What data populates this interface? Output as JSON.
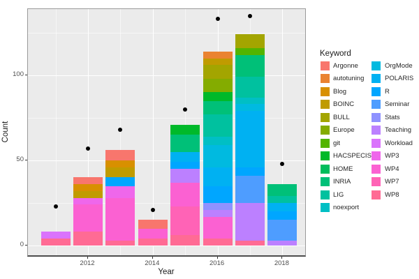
{
  "chart_data": {
    "type": "bar",
    "stacked": true,
    "title": "",
    "xlabel": "Year",
    "ylabel": "Count",
    "legend_title": "Keyword",
    "legend_position": "right",
    "grid": true,
    "x_ticks": [
      2012,
      2014,
      2016,
      2018
    ],
    "y_ticks": [
      0,
      50,
      100
    ],
    "ylim": [
      0,
      139
    ],
    "keywords": [
      {
        "label": "Argonne",
        "color": "#F8766D"
      },
      {
        "label": "autotuning",
        "color": "#EA8331"
      },
      {
        "label": "Blog",
        "color": "#D89000"
      },
      {
        "label": "BOINC",
        "color": "#C09B00"
      },
      {
        "label": "BULL",
        "color": "#A3A500"
      },
      {
        "label": "Europe",
        "color": "#84AC00"
      },
      {
        "label": "git",
        "color": "#52B400"
      },
      {
        "label": "HACSPECIS",
        "color": "#00B92A"
      },
      {
        "label": "HOME",
        "color": "#00BD5C"
      },
      {
        "label": "INRIA",
        "color": "#00C078"
      },
      {
        "label": "LIG",
        "color": "#00C19F"
      },
      {
        "label": "noexport",
        "color": "#00BFC4"
      },
      {
        "label": "OrgMode",
        "color": "#00BAE0"
      },
      {
        "label": "POLARIS",
        "color": "#00B1F2"
      },
      {
        "label": "R",
        "color": "#00A6FF"
      },
      {
        "label": "Seminar",
        "color": "#4E9DFF"
      },
      {
        "label": "Stats",
        "color": "#8F92FF"
      },
      {
        "label": "Teaching",
        "color": "#BC80FF"
      },
      {
        "label": "Workload",
        "color": "#DA73FC"
      },
      {
        "label": "WP3",
        "color": "#EF67EB"
      },
      {
        "label": "WP4",
        "color": "#FB61D2"
      },
      {
        "label": "WP7",
        "color": "#FF63B6"
      },
      {
        "label": "WP8",
        "color": "#FF6B94"
      }
    ],
    "bars": [
      {
        "year": 2011,
        "total": 8,
        "segments": [
          [
            "WP8",
            4
          ],
          [
            "Workload",
            4
          ]
        ]
      },
      {
        "year": 2012,
        "total": 40,
        "segments": [
          [
            "WP8",
            8
          ],
          [
            "WP4",
            16
          ],
          [
            "WP3",
            4
          ],
          [
            "BOINC",
            4
          ],
          [
            "Blog",
            4
          ],
          [
            "Argonne",
            4
          ]
        ]
      },
      {
        "year": 2013,
        "total": 56,
        "segments": [
          [
            "WP8",
            3
          ],
          [
            "WP4",
            25
          ],
          [
            "WP3",
            7
          ],
          [
            "R",
            5
          ],
          [
            "BOINC",
            6
          ],
          [
            "Blog",
            4
          ],
          [
            "Argonne",
            6
          ]
        ]
      },
      {
        "year": 2014,
        "total": 15,
        "segments": [
          [
            "WP8",
            4
          ],
          [
            "WP4",
            6
          ],
          [
            "Argonne",
            5
          ]
        ]
      },
      {
        "year": 2015,
        "total": 71,
        "segments": [
          [
            "WP8",
            6
          ],
          [
            "WP7",
            17
          ],
          [
            "WP4",
            14
          ],
          [
            "Teaching",
            8
          ],
          [
            "R",
            4
          ],
          [
            "POLARIS",
            6
          ],
          [
            "INRIA",
            10
          ],
          [
            "HACSPECIS",
            6
          ]
        ]
      },
      {
        "year": 2016,
        "total": 114,
        "segments": [
          [
            "WP8",
            4
          ],
          [
            "WP4",
            13
          ],
          [
            "Teaching",
            4
          ],
          [
            "Stats",
            4
          ],
          [
            "R",
            10
          ],
          [
            "POLARIS",
            11
          ],
          [
            "OrgMode",
            13
          ],
          [
            "noexport",
            5
          ],
          [
            "LIG",
            13
          ],
          [
            "INRIA",
            8
          ],
          [
            "HACSPECIS",
            5
          ],
          [
            "Europe",
            8
          ],
          [
            "BULL",
            8
          ],
          [
            "BOINC",
            4
          ],
          [
            "autotuning",
            4
          ]
        ]
      },
      {
        "year": 2017,
        "total": 124,
        "segments": [
          [
            "WP8",
            3
          ],
          [
            "Teaching",
            22
          ],
          [
            "Seminar",
            16
          ],
          [
            "R",
            5
          ],
          [
            "POLARIS",
            33
          ],
          [
            "OrgMode",
            4
          ],
          [
            "noexport",
            4
          ],
          [
            "LIG",
            12
          ],
          [
            "INRIA",
            13
          ],
          [
            "git",
            4
          ],
          [
            "BULL",
            8
          ]
        ]
      },
      {
        "year": 2018,
        "total": 36,
        "segments": [
          [
            "Teaching",
            3
          ],
          [
            "Seminar",
            12
          ],
          [
            "R",
            5
          ],
          [
            "POLARIS",
            5
          ],
          [
            "LIG",
            4
          ],
          [
            "INRIA",
            7
          ]
        ]
      }
    ],
    "points": [
      {
        "year": 2011,
        "value": 23
      },
      {
        "year": 2012,
        "value": 57
      },
      {
        "year": 2013,
        "value": 68
      },
      {
        "year": 2014,
        "value": 21
      },
      {
        "year": 2015,
        "value": 80
      },
      {
        "year": 2016,
        "value": 133
      },
      {
        "year": 2017,
        "value": 135
      },
      {
        "year": 2018,
        "value": 48
      }
    ]
  }
}
